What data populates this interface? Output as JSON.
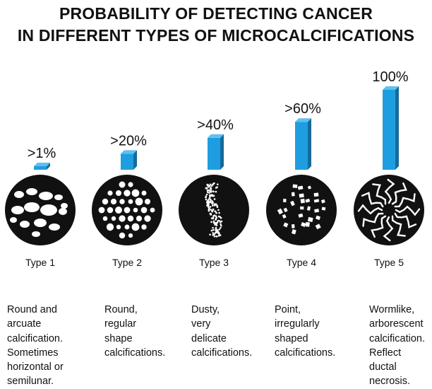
{
  "title_lines": [
    "PROBABILITY OF DETECTING CANCER",
    "IN DIFFERENT TYPES OF MICROCALCIFICATIONS"
  ],
  "colors": {
    "bar_front": "#1e9ee0",
    "bar_side": "#176a9c",
    "bar_top": "#5fc0ee",
    "circle": "#111111",
    "dots": "#ffffff"
  },
  "chart_data": {
    "type": "bar",
    "categories": [
      "Type 1",
      "Type 2",
      "Type 3",
      "Type 4",
      "Type 5"
    ],
    "values": [
      1,
      20,
      40,
      60,
      100
    ],
    "value_labels": [
      ">1%",
      ">20%",
      ">40%",
      ">60%",
      "100%"
    ],
    "ylim": [
      0,
      100
    ],
    "title": "PROBABILITY OF DETECTING CANCER IN DIFFERENT TYPES OF MICROCALCIFICATIONS",
    "descriptions": [
      [
        "Round and",
        "arcuate",
        "calcification.",
        "Sometimes",
        "horizontal or",
        "semilunar."
      ],
      [
        "Round,",
        "regular",
        "shape",
        "calcifications."
      ],
      [
        "Dusty,",
        "very",
        "delicate",
        "calcifications."
      ],
      [
        "Point,",
        "irregularly",
        "shaped",
        "calcifications."
      ],
      [
        "Wormlike,",
        "arborescent",
        "calcification.",
        "Reflect",
        "ductal",
        "necrosis."
      ]
    ]
  }
}
